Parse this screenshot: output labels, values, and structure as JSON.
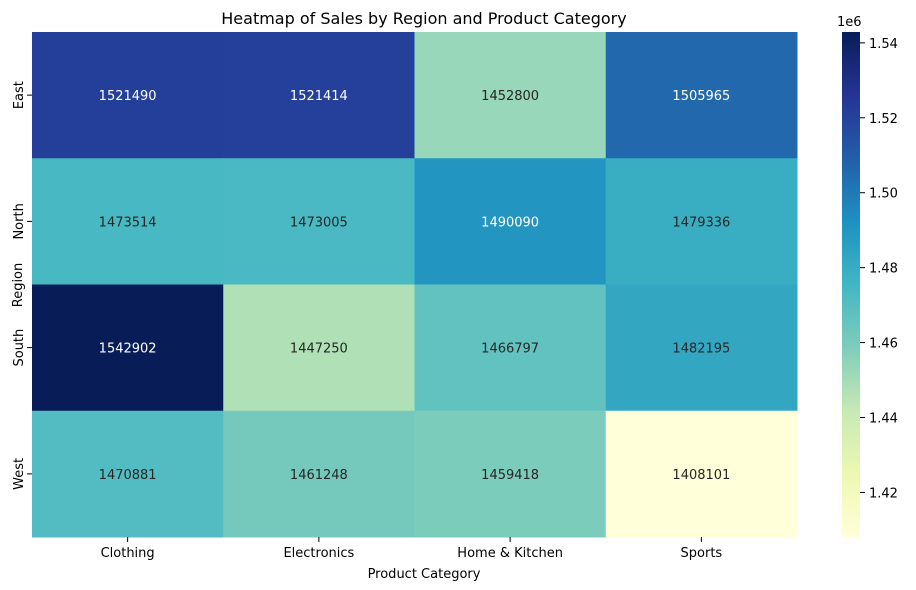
{
  "chart_data": {
    "type": "heatmap",
    "title": "Heatmap of Sales by Region and Product Category",
    "xlabel": "Product Category",
    "ylabel": "Region",
    "x_categories": [
      "Clothing",
      "Electronics",
      "Home & Kitchen",
      "Sports"
    ],
    "y_categories": [
      "East",
      "North",
      "South",
      "West"
    ],
    "values": [
      [
        1521490,
        1521414,
        1452800,
        1505965
      ],
      [
        1473514,
        1473005,
        1490090,
        1479336
      ],
      [
        1542902,
        1447250,
        1466797,
        1482195
      ],
      [
        1470881,
        1461248,
        1459418,
        1408101
      ]
    ],
    "colormap": "YlGnBu",
    "colormap_stops": [
      "#ffffd9",
      "#edf8b1",
      "#c7e9b4",
      "#7fcdbb",
      "#41b6c4",
      "#1d91c0",
      "#225ea8",
      "#253494",
      "#081d58"
    ],
    "color_range": [
      1408101,
      1542902
    ],
    "colorbar": {
      "ticks": [
        1.42,
        1.44,
        1.46,
        1.48,
        1.5,
        1.52,
        1.54
      ],
      "tick_labels": [
        "1.42",
        "1.44",
        "1.46",
        "1.48",
        "1.50",
        "1.52",
        "1.54"
      ],
      "multiplier_label": "1e6"
    }
  }
}
